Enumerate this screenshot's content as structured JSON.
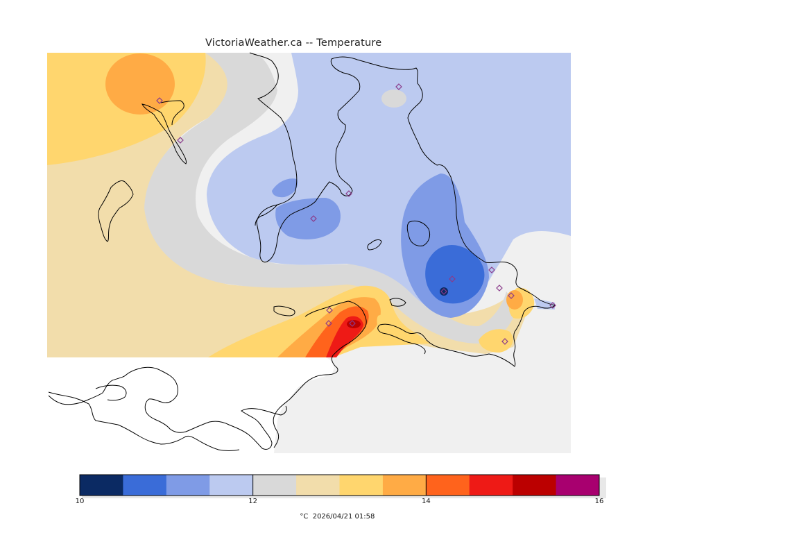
{
  "title": "VictoriaWeather.ca -- Temperature",
  "legend": {
    "unit": "°C",
    "timestamp": "2026/04/21 01:58",
    "colors": [
      "#0b2a63",
      "#3a6cd8",
      "#7f9be6",
      "#bccaf0",
      "#d9d9d9",
      "#f2ddab",
      "#ffd66e",
      "#ffab45",
      "#ff631c",
      "#ee1a16",
      "#bb0000",
      "#a8006f"
    ],
    "min": 10,
    "max": 16,
    "ticks": [
      {
        "value": 10,
        "label": "10"
      },
      {
        "value": 12,
        "label": "12"
      },
      {
        "value": 14,
        "label": "14"
      },
      {
        "value": 16,
        "label": "16"
      }
    ]
  },
  "colors": {
    "background": "#f0f0f0",
    "coastline": "#000000",
    "station_marker": "#8a3a8a"
  }
}
